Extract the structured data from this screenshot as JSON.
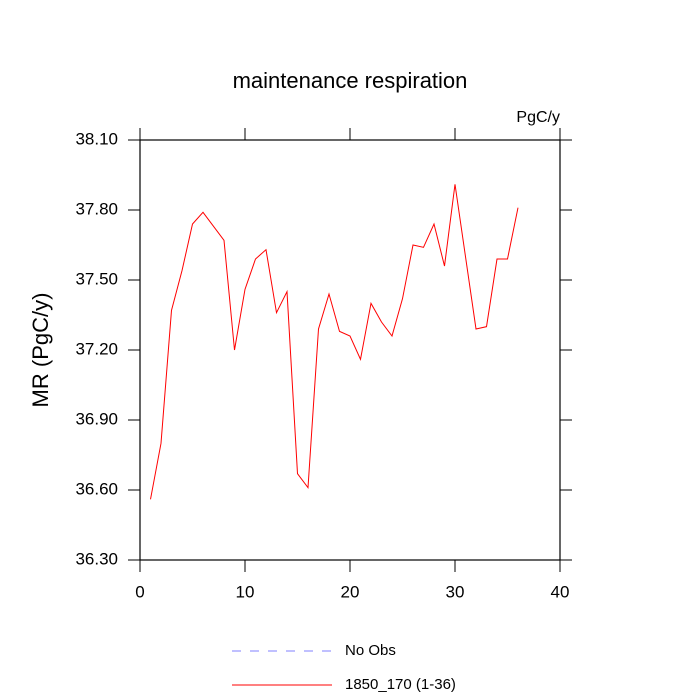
{
  "chart_data": {
    "type": "line",
    "title": "maintenance respiration",
    "units": "PgC/y",
    "y_label": "MR  (PgC/y)",
    "x": [
      1,
      2,
      3,
      4,
      5,
      6,
      7,
      8,
      9,
      10,
      11,
      12,
      13,
      14,
      15,
      16,
      17,
      18,
      19,
      20,
      21,
      22,
      23,
      24,
      25,
      26,
      27,
      28,
      29,
      30,
      31,
      32,
      33,
      34,
      35,
      36
    ],
    "series": [
      {
        "name": "1850_170 (1-36)",
        "color": "#ff0000",
        "values": [
          36.56,
          36.8,
          37.37,
          37.54,
          37.74,
          37.79,
          37.73,
          37.67,
          37.2,
          37.46,
          37.59,
          37.63,
          37.36,
          37.45,
          36.67,
          36.61,
          37.29,
          37.44,
          37.28,
          37.26,
          37.16,
          37.4,
          37.32,
          37.26,
          37.42,
          37.65,
          37.64,
          37.74,
          37.56,
          37.91,
          37.6,
          37.29,
          37.3,
          37.59,
          37.59,
          37.81
        ]
      }
    ],
    "obs": {
      "name": "No Obs",
      "color": "#8080ff",
      "dash": "dashed"
    },
    "xlim": [
      0,
      40
    ],
    "xticks": [
      0,
      10,
      20,
      30,
      40
    ],
    "ylim": [
      36.3,
      38.1
    ],
    "yticks": [
      {
        "value": 36.3,
        "label": "36.30"
      },
      {
        "value": 36.6,
        "label": "36.60"
      },
      {
        "value": 36.9,
        "label": "36.90"
      },
      {
        "value": 37.2,
        "label": "37.20"
      },
      {
        "value": 37.5,
        "label": "37.50"
      },
      {
        "value": 37.8,
        "label": "37.80"
      },
      {
        "value": 38.1,
        "label": "38.10"
      }
    ],
    "grid": false
  }
}
